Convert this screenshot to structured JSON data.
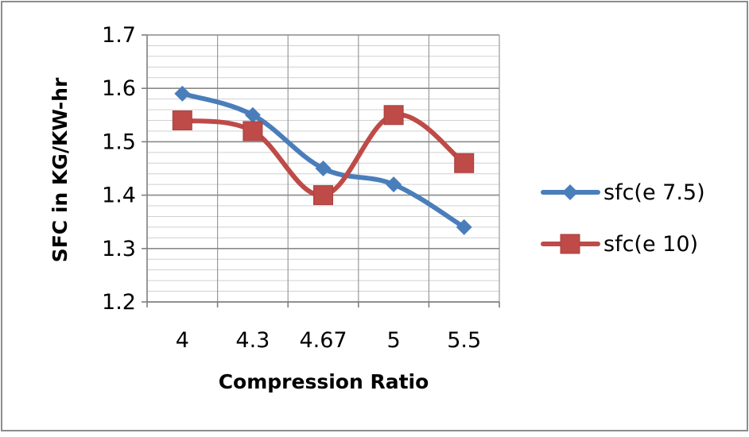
{
  "chart_data": {
    "type": "line",
    "title": "",
    "categories": [
      "4",
      "4.3",
      "4.67",
      "5",
      "5.5"
    ],
    "xlabel": "Compression Ratio",
    "ylabel": "SFC in KG/KW-hr",
    "ylim": [
      1.2,
      1.7
    ],
    "yticks": [
      "1.2",
      "1.3",
      "1.4",
      "1.5",
      "1.6",
      "1.7"
    ],
    "grid": true,
    "legend_position": "right",
    "series": [
      {
        "name": "sfc(e 7.5)",
        "values": [
          1.59,
          1.55,
          1.45,
          1.42,
          1.34
        ],
        "color": "#4a7ebb",
        "marker": "diamond"
      },
      {
        "name": "sfc(e 10)",
        "values": [
          1.54,
          1.52,
          1.4,
          1.55,
          1.46
        ],
        "color": "#be4b48",
        "marker": "square"
      }
    ]
  }
}
